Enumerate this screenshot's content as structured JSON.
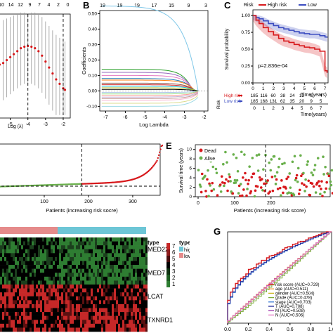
{
  "panels": {
    "B": "B",
    "C": "C",
    "E": "E",
    "G": "G"
  },
  "colors": {
    "red": "#d7191c",
    "blue": "#3b4cc0",
    "green": "#6ab04c",
    "heat_high": "#d73027",
    "heat_low": "#000000"
  },
  "chart_data": [
    {
      "id": "A-cv",
      "type": "scatter",
      "top_ticks": [
        "10",
        "14",
        "12",
        "9",
        "7",
        "4",
        "2",
        "0"
      ],
      "x_ticks": [
        "-5",
        "-4",
        "-3",
        "-2"
      ],
      "xlabel": "Log (λ)",
      "x": [
        -5.6,
        -5.4,
        -5.2,
        -5.0,
        -4.8,
        -4.6,
        -4.4,
        -4.2,
        -4.0,
        -3.8,
        -3.6,
        -3.4,
        -3.2,
        -3.0,
        -2.8,
        -2.6,
        -2.4,
        -2.2,
        -2.0,
        -1.9
      ],
      "y": [
        0.46,
        0.47,
        0.49,
        0.51,
        0.53,
        0.55,
        0.57,
        0.58,
        0.585,
        0.58,
        0.57,
        0.55,
        0.52,
        0.48,
        0.44,
        0.4,
        0.36,
        0.33,
        0.3,
        0.29
      ],
      "vlines": [
        -4.0,
        -2.0
      ]
    },
    {
      "id": "B-coef",
      "type": "line",
      "top_ticks": [
        "19",
        "19",
        "19",
        "17",
        "15",
        "9",
        "3"
      ],
      "ylabel": "Coefficients",
      "y_ticks": [
        "0.50",
        "0.40",
        "0.30",
        "0.20",
        "0.10",
        "0.00",
        "-0.10"
      ],
      "x_ticks": [
        "-7",
        "-6",
        "-5",
        "-4",
        "-3",
        "-2"
      ],
      "xlabel": "Log Lambda",
      "series_count": 19
    },
    {
      "id": "C-km",
      "type": "line",
      "legend_title": "Risk",
      "legend_items": [
        "High risk",
        "Low"
      ],
      "ylabel": "Survival probability",
      "y_ticks": [
        "1.00",
        "0.75",
        "0.50",
        "0.25",
        "0.00"
      ],
      "x_ticks": [
        "0",
        "1",
        "2",
        "3",
        "4",
        "5",
        "6",
        "7"
      ],
      "xlabel": "Time(years)",
      "pvalue": "p=2.836e-04",
      "high_risk": {
        "x": [
          0,
          0.3,
          0.6,
          1,
          1.5,
          2,
          2.5,
          3,
          3.5,
          4,
          4.5,
          5,
          5.5,
          6,
          6.5,
          7,
          7.2
        ],
        "y": [
          1,
          0.93,
          0.88,
          0.82,
          0.76,
          0.71,
          0.66,
          0.62,
          0.6,
          0.57,
          0.55,
          0.53,
          0.52,
          0.5,
          0.47,
          0.18,
          0.15
        ]
      },
      "low_risk": {
        "x": [
          0,
          0.3,
          0.6,
          1,
          1.5,
          2,
          2.5,
          3,
          3.5,
          4,
          4.5,
          5,
          5.5,
          6,
          6.5,
          7,
          7.2
        ],
        "y": [
          1,
          0.97,
          0.95,
          0.92,
          0.88,
          0.85,
          0.82,
          0.8,
          0.78,
          0.76,
          0.74,
          0.73,
          0.72,
          0.72,
          0.7,
          0.68,
          0.67
        ]
      },
      "risk_table_title": "Risk",
      "risk_table_rows": [
        {
          "label": "High risk",
          "values": [
            "185",
            "116",
            "60",
            "38",
            "24",
            "12",
            "6",
            "4"
          ]
        },
        {
          "label": "Low risk",
          "values": [
            "185",
            "168",
            "131",
            "62",
            "35",
            "20",
            "9",
            "5"
          ]
        }
      ],
      "risk_table_x": [
        "0",
        "1",
        "2",
        "3",
        "4",
        "5",
        "6",
        "7"
      ],
      "risk_table_xlabel": "Time(years)"
    },
    {
      "id": "D-riskscore",
      "type": "scatter",
      "x_ticks": [
        "100",
        "200",
        "300"
      ],
      "xlabel": "Patients (increasing risk socre)",
      "cutoff": 185
    },
    {
      "id": "E-status",
      "type": "scatter",
      "ylabel": "Survival time (years)",
      "y_ticks": [
        "10",
        "8",
        "6",
        "4",
        "2",
        "0"
      ],
      "x_ticks": [
        "0",
        "100",
        "200"
      ],
      "xlabel": "Patients (increasing risk score)",
      "legend_items": [
        "Dead",
        "Alive"
      ],
      "cutoff": 185
    },
    {
      "id": "F-heatmap",
      "type": "heatmap",
      "genes": [
        "MED22",
        "MED7",
        "LCAT",
        "TXNRD1"
      ],
      "legend_title": "type",
      "legend_types": [
        "high",
        "low"
      ],
      "scale_ticks": [
        "7",
        "6",
        "5",
        "4",
        "3",
        "2",
        "1"
      ]
    },
    {
      "id": "G-roc",
      "type": "line",
      "x_ticks": [
        "0.0",
        "0.2",
        "0.4",
        "0.6",
        "0.8",
        "1.0"
      ],
      "legend": [
        {
          "name": "risk score (AUC=0.729)",
          "color": "#d7191c"
        },
        {
          "name": "age (AUC=0.511)",
          "color": "#f19a33"
        },
        {
          "name": "gender (AUC=0.504)",
          "color": "#c9b31b"
        },
        {
          "name": "grade (AUC=0.478)",
          "color": "#7cae38"
        },
        {
          "name": "stage (AUC=0.703)",
          "color": "#3b7bd6"
        },
        {
          "name": "T (AUC=0.708)",
          "color": "#1f2a9a"
        },
        {
          "name": "M (AUC=0.508)",
          "color": "#9b2fa8"
        },
        {
          "name": "N (AUC=0.506)",
          "color": "#e377c2"
        }
      ]
    }
  ]
}
